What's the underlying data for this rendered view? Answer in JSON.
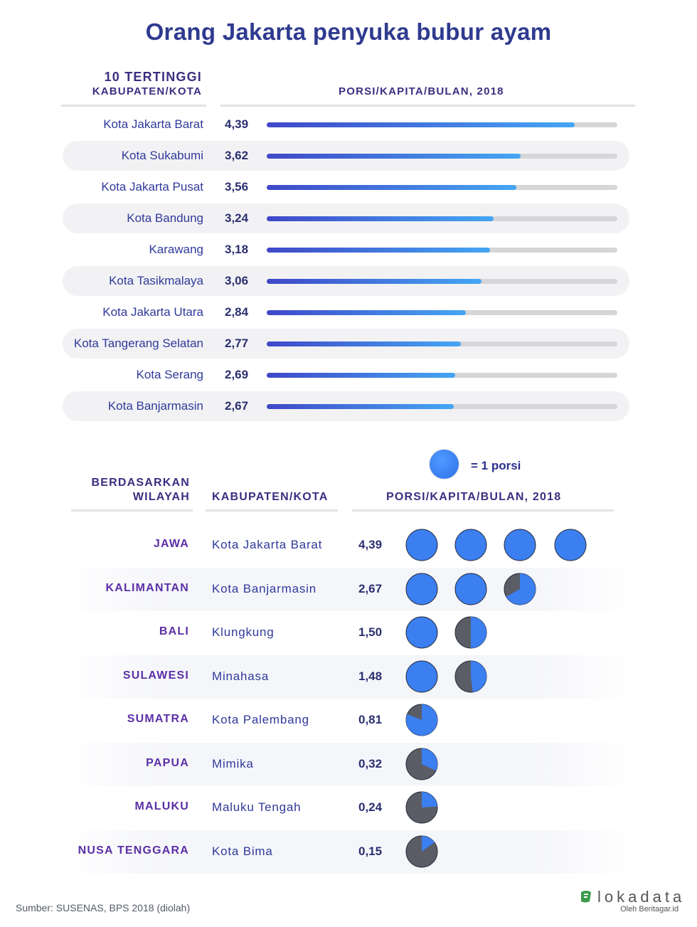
{
  "title": "Orang Jakarta penyuka bubur ayam",
  "top": {
    "heading_line1": "10 TERTINGGI",
    "heading_line2": "KABUPATEN/KOTA",
    "col_header": "PORSI/KAPITA/BULAN, 2018"
  },
  "bottom": {
    "heading_line1": "BERDASARKAN",
    "heading_line2": "WILAYAH",
    "col_city": "KABUPATEN/KOTA",
    "col_value": "PORSI/KAPITA/BULAN, 2018",
    "legend": "= 1 porsi"
  },
  "chart_data": [
    {
      "type": "bar",
      "orientation": "horizontal",
      "categories": [
        "Kota Jakarta Barat",
        "Kota Sukabumi",
        "Kota Jakarta Pusat",
        "Kota Bandung",
        "Karawang",
        "Kota Tasikmalaya",
        "Kota Jakarta Utara",
        "Kota Tangerang Selatan",
        "Kota Serang",
        "Kota Banjarmasin"
      ],
      "values": [
        4.39,
        3.62,
        3.56,
        3.24,
        3.18,
        3.06,
        2.84,
        2.77,
        2.69,
        2.67
      ],
      "labels": [
        "4,39",
        "3,62",
        "3,56",
        "3,24",
        "3,18",
        "3,06",
        "2,84",
        "2,77",
        "2,69",
        "2,67"
      ],
      "xlim": [
        0,
        5
      ]
    },
    {
      "type": "table",
      "rows": [
        {
          "region": "JAWA",
          "city": "Kota Jakarta Barat",
          "value": 4.39,
          "label": "4,39"
        },
        {
          "region": "KALIMANTAN",
          "city": "Kota Banjarmasin",
          "value": 2.67,
          "label": "2,67"
        },
        {
          "region": "BALI",
          "city": "Klungkung",
          "value": 1.5,
          "label": "1,50"
        },
        {
          "region": "SULAWESI",
          "city": "Minahasa",
          "value": 1.48,
          "label": "1,48"
        },
        {
          "region": "SUMATRA",
          "city": "Kota Palembang",
          "value": 0.81,
          "label": "0,81"
        },
        {
          "region": "PAPUA",
          "city": "Mimika",
          "value": 0.32,
          "label": "0,32"
        },
        {
          "region": "MALUKU",
          "city": "Maluku Tengah",
          "value": 0.24,
          "label": "0,24"
        },
        {
          "region": "NUSA TENGGARA",
          "city": "Kota Bima",
          "value": 0.15,
          "label": "0,15"
        }
      ]
    }
  ],
  "colors": {
    "bar_start": "#3f48c8",
    "bar_end": "#45a6f3",
    "track": "#d6d6d9",
    "pie_fill": "#3b7ff0",
    "pie_empty": "#5a5d66",
    "region_text": "#5b2fa6"
  },
  "source": "Sumber: SUSENAS, BPS 2018 (diolah)",
  "logo": {
    "name": "lokadata",
    "sub": "Oleh Beritagar.id"
  }
}
